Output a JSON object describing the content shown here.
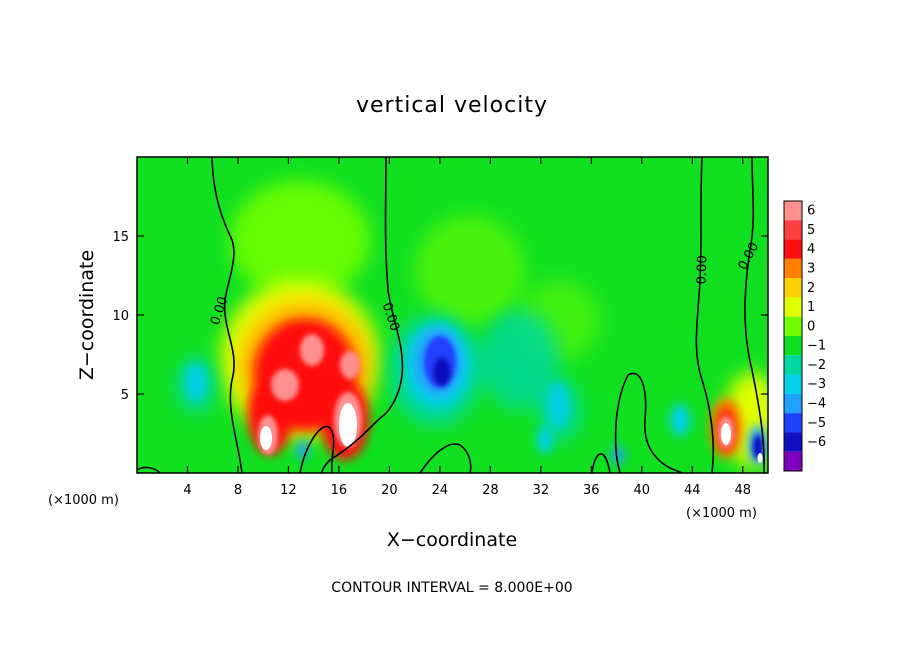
{
  "chart_data": {
    "type": "heatmap",
    "title": "vertical velocity",
    "xlabel": "X−coordinate",
    "ylabel": "Z−coordinate",
    "x_unit_left": "(×1000 m)",
    "x_unit_right": "(×1000 m)",
    "footer": "CONTOUR INTERVAL = 8.000E+00",
    "xlim": [
      0,
      50
    ],
    "ylim": [
      0,
      20
    ],
    "x_ticks": [
      4,
      8,
      12,
      16,
      20,
      24,
      28,
      32,
      36,
      40,
      44,
      48
    ],
    "y_ticks": [
      5,
      10,
      15
    ],
    "contour_labels": [
      "0.00",
      "0.00",
      "0.00",
      "0.00"
    ],
    "colorbar": {
      "levels": [
        6,
        5,
        4,
        3,
        2,
        1,
        0,
        "−1",
        "−2",
        "−3",
        "−4",
        "−5",
        "−6"
      ],
      "colors": [
        "#ff9090",
        "#ff4040",
        "#ff1010",
        "#ff8000",
        "#ffd000",
        "#e0ff00",
        "#70ff00",
        "#10e020",
        "#00d8a0",
        "#00d0e8",
        "#20a0ff",
        "#2040ff",
        "#1010c0",
        "#8000c0"
      ]
    }
  }
}
